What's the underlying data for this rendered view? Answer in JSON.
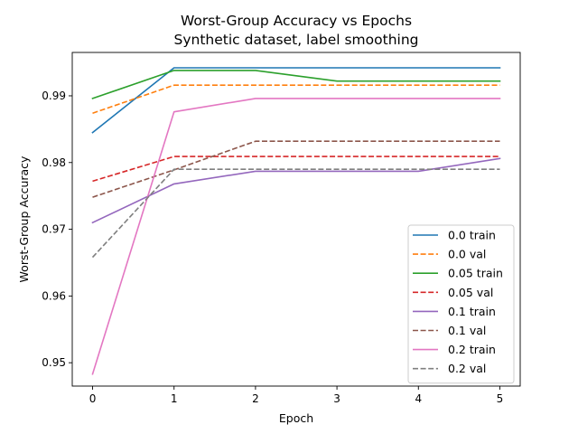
{
  "chart_data": {
    "type": "line",
    "title": "Worst-Group Accuracy vs Epochs",
    "subtitle": "Synthetic dataset, label smoothing",
    "xlabel": "Epoch",
    "ylabel": "Worst-Group Accuracy",
    "x": [
      0,
      1,
      2,
      3,
      4,
      5
    ],
    "xticks": [
      "0",
      "1",
      "2",
      "3",
      "4",
      "5"
    ],
    "yticks": [
      "0.95",
      "0.96",
      "0.97",
      "0.98",
      "0.99"
    ],
    "ylim": [
      0.9465,
      0.9965
    ],
    "xlim": [
      -0.25,
      5.25
    ],
    "grid": false,
    "legend_position": "lower-right",
    "series": [
      {
        "name": "0.0 train",
        "color": "#1f77b4",
        "dash": "solid",
        "values": [
          0.9845,
          0.9942,
          0.9942,
          0.9942,
          0.9942,
          0.9942
        ]
      },
      {
        "name": "0.0 val",
        "color": "#ff7f0e",
        "dash": "dashed",
        "values": [
          0.9874,
          0.9916,
          0.9916,
          0.9916,
          0.9916,
          0.9916
        ]
      },
      {
        "name": "0.05 train",
        "color": "#2ca02c",
        "dash": "solid",
        "values": [
          0.9896,
          0.9938,
          0.9938,
          0.9922,
          0.9922,
          0.9922
        ]
      },
      {
        "name": "0.05 val",
        "color": "#d62728",
        "dash": "dashed",
        "values": [
          0.9772,
          0.9809,
          0.9809,
          0.9809,
          0.9809,
          0.9809
        ]
      },
      {
        "name": "0.1 train",
        "color": "#9467bd",
        "dash": "solid",
        "values": [
          0.971,
          0.9768,
          0.9787,
          0.9787,
          0.9787,
          0.9806
        ]
      },
      {
        "name": "0.1 val",
        "color": "#8c564b",
        "dash": "dashed",
        "values": [
          0.9748,
          0.9789,
          0.9832,
          0.9832,
          0.9832,
          0.9832
        ]
      },
      {
        "name": "0.2 train",
        "color": "#e377c2",
        "dash": "solid",
        "values": [
          0.9483,
          0.9876,
          0.9896,
          0.9896,
          0.9896,
          0.9896
        ]
      },
      {
        "name": "0.2 val",
        "color": "#7f7f7f",
        "dash": "dashed",
        "values": [
          0.9658,
          0.979,
          0.979,
          0.979,
          0.979,
          0.979
        ]
      }
    ]
  }
}
